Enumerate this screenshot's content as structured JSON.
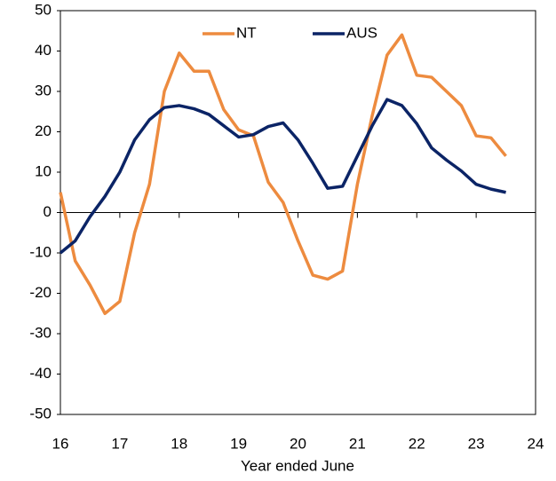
{
  "chart_data": {
    "type": "line",
    "x_label": "Year ended June",
    "x": [
      16,
      16.25,
      16.5,
      16.75,
      17,
      17.25,
      17.5,
      17.75,
      18,
      18.25,
      18.5,
      18.75,
      19,
      19.25,
      19.5,
      19.75,
      20,
      20.25,
      20.5,
      20.75,
      21,
      21.25,
      21.5,
      21.75,
      22,
      22.25,
      22.5,
      22.75,
      23,
      23.25,
      23.5
    ],
    "series": [
      {
        "name": "NT",
        "color": "#ed8b3f",
        "values": [
          5,
          -12,
          -18,
          -25,
          -22,
          -5,
          7,
          30,
          39.5,
          35,
          35,
          25.5,
          20.5,
          19,
          7.5,
          2.5,
          -7,
          -15.5,
          -16.5,
          -14.5,
          7,
          24,
          39,
          44,
          34,
          33.5,
          30,
          26.5,
          19,
          18.5,
          14
        ]
      },
      {
        "name": "AUS",
        "color": "#0b2466",
        "values": [
          -10,
          -7,
          -1,
          4,
          10,
          18,
          23,
          26,
          26.5,
          25.7,
          24.3,
          21.5,
          18.7,
          19.3,
          21.3,
          22.2,
          18,
          12.2,
          6,
          6.5,
          14,
          21.5,
          28,
          26.5,
          22,
          16,
          13,
          10.3,
          7,
          5.8,
          5
        ]
      }
    ],
    "xlim": [
      16,
      24
    ],
    "xticks": [
      16,
      17,
      18,
      19,
      20,
      21,
      22,
      23,
      24
    ],
    "ylim": [
      -50,
      50
    ],
    "yticks": [
      -50,
      -40,
      -30,
      -20,
      -10,
      0,
      10,
      20,
      30,
      40,
      50
    ],
    "grid": false,
    "legend": "top"
  }
}
